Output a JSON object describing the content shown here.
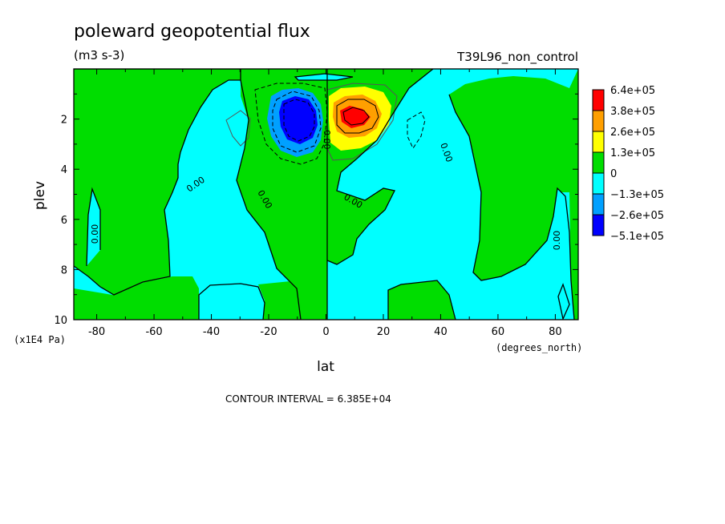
{
  "chart_data": {
    "type": "contour",
    "title": "poleward geopotential flux",
    "units": "(m3 s-3)",
    "experiment": "T39L96_non_control",
    "xlabel": "lat",
    "x_unit": "(degrees_north)",
    "ylabel": "plev",
    "y_unit": "(x1E4 Pa)",
    "xlim": [
      -88,
      88
    ],
    "ylim": [
      10,
      0
    ],
    "x_ticks": [
      "-80",
      "-60",
      "-40",
      "-20",
      "0",
      "20",
      "40",
      "60",
      "80"
    ],
    "y_ticks": [
      "2",
      "4",
      "6",
      "8",
      "10"
    ],
    "contour_interval_text": "CONTOUR INTERVAL = 6.385E+04",
    "zero_contour_label": "0.00",
    "colorbar": {
      "labels": [
        "6.4e+05",
        "3.8e+05",
        "2.6e+05",
        "1.3e+05",
        "0",
        "−1.3e+05",
        "−2.6e+05",
        "−5.1e+05"
      ],
      "colors": [
        "#ff0000",
        "#ff9f00",
        "#ffff00",
        "#00dd00",
        "#00ffff",
        "#00a0ff",
        "#0000ff"
      ]
    },
    "features": [
      {
        "name": "negative-maximum",
        "lat": -10,
        "plev": 2.0,
        "approx_value": -510000
      },
      {
        "name": "positive-maximum",
        "lat": 8,
        "plev": 2.0,
        "approx_value": 640000
      }
    ]
  }
}
